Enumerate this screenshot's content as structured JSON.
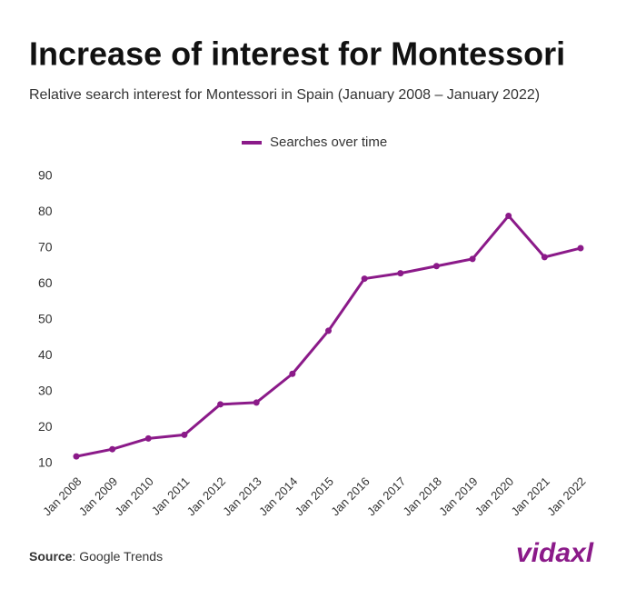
{
  "chart_data": {
    "type": "line",
    "title": "Increase of interest for Montessori",
    "subtitle": "Relative search interest for Montessori in Spain (January 2008 – January 2022)",
    "categories": [
      "Jan 2008",
      "Jan 2009",
      "Jan 2010",
      "Jan 2011",
      "Jan 2012",
      "Jan 2013",
      "Jan 2014",
      "Jan 2015",
      "Jan 2016",
      "Jan 2017",
      "Jan 2018",
      "Jan 2019",
      "Jan 2020",
      "Jan 2021",
      "Jan 2022"
    ],
    "series": [
      {
        "name": "Searches over time",
        "color": "#8b1a89",
        "values": [
          12,
          14,
          17,
          18,
          26.5,
          27,
          35,
          47,
          61.5,
          63,
          65,
          67,
          79,
          67.5,
          70
        ]
      }
    ],
    "ylim": [
      10,
      90
    ],
    "yticks": [
      10,
      20,
      30,
      40,
      50,
      60,
      70,
      80,
      90
    ],
    "grid": false,
    "legend": "top",
    "source_label": "Source",
    "source": ": Google Trends",
    "logo": "vidaxl"
  }
}
